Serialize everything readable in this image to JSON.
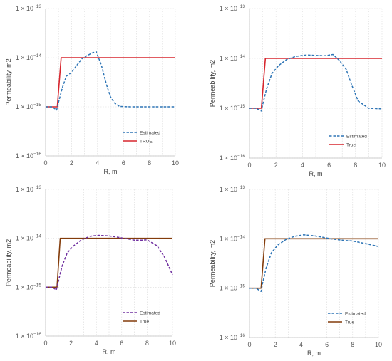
{
  "chart_data": [
    {
      "type": "line",
      "xlabel": "R, m",
      "ylabel": "Permeability, m2",
      "xlim": [
        0,
        10
      ],
      "ylim": [
        1e-16,
        1e-13
      ],
      "yscale": "log",
      "x_ticks": [
        "0",
        "2",
        "4",
        "6",
        "8",
        "10"
      ],
      "y_ticks": [
        {
          "base": "1 × 10",
          "exp": "−16"
        },
        {
          "base": "1 × 10",
          "exp": "−15"
        },
        {
          "base": "1 × 10",
          "exp": "−14"
        },
        {
          "base": "1 × 10",
          "exp": "−13"
        }
      ],
      "grid": true,
      "legend_position": "bottom-right",
      "series": [
        {
          "name": "Estimated",
          "color": "#2e75b6",
          "style": "dashed",
          "x": [
            0,
            0.5,
            0.85,
            1.0,
            1.3,
            1.6,
            2.0,
            2.4,
            2.8,
            3.2,
            3.6,
            3.9,
            4.3,
            4.7,
            5.0,
            5.3,
            5.7,
            6.5,
            7.5,
            8.5,
            9.5,
            10
          ],
          "y": [
            1e-15,
            1e-15,
            8.6e-16,
            1.25e-15,
            2.5e-15,
            4.2e-15,
            5e-15,
            7e-15,
            9.5e-15,
            1.1e-14,
            1.25e-14,
            1.33e-14,
            7e-15,
            2.8e-15,
            1.6e-15,
            1.2e-15,
            1.02e-15,
            1e-15,
            1e-15,
            1e-15,
            1e-15,
            1e-15
          ]
        },
        {
          "name": "TRUE",
          "color": "#d7262e",
          "style": "solid",
          "x": [
            0,
            0.9,
            1.2,
            10
          ],
          "y": [
            1e-15,
            1e-15,
            1e-14,
            1e-14
          ]
        }
      ]
    },
    {
      "type": "line",
      "xlabel": "R, m",
      "ylabel": "Permeability, m2",
      "xlim": [
        0,
        10
      ],
      "ylim": [
        1e-16,
        1e-13
      ],
      "yscale": "log",
      "x_ticks": [
        "0",
        "2",
        "4",
        "6",
        "8",
        "10"
      ],
      "y_ticks": [
        {
          "base": "1 × 10",
          "exp": "−16"
        },
        {
          "base": "1 × 10",
          "exp": "−15"
        },
        {
          "base": "1 × 10",
          "exp": "−14"
        },
        {
          "base": "1 × 10",
          "exp": "−13"
        }
      ],
      "grid": true,
      "legend_position": "bottom-right",
      "series": [
        {
          "name": "Estimated",
          "color": "#2e75b6",
          "style": "dashed",
          "x": [
            0,
            0.5,
            0.9,
            1.0,
            1.3,
            1.7,
            2.2,
            2.8,
            3.5,
            4.3,
            5.0,
            5.7,
            6.3,
            6.8,
            7.3,
            7.7,
            8.2,
            9.0,
            10
          ],
          "y": [
            1e-15,
            1e-15,
            8.8e-16,
            1.2e-15,
            2.5e-15,
            5e-15,
            7.2e-15,
            9.5e-15,
            1.1e-14,
            1.17e-14,
            1.15e-14,
            1.13e-14,
            1.2e-14,
            9e-15,
            6e-15,
            3e-15,
            1.4e-15,
            1e-15,
            9.7e-16
          ]
        },
        {
          "name": "True",
          "color": "#d7262e",
          "style": "solid",
          "x": [
            0,
            0.9,
            1.2,
            10
          ],
          "y": [
            1e-15,
            1e-15,
            1e-14,
            1e-14
          ]
        }
      ]
    },
    {
      "type": "line",
      "xlabel": "R, m",
      "ylabel": "Permeability, m2",
      "xlim": [
        0,
        10
      ],
      "ylim": [
        1e-16,
        1e-13
      ],
      "yscale": "log",
      "x_ticks": [
        "0",
        "2",
        "4",
        "6",
        "8",
        "10"
      ],
      "y_ticks": [
        {
          "base": "1 × 10",
          "exp": "−16"
        },
        {
          "base": "1 × 10",
          "exp": "−15"
        },
        {
          "base": "1 × 10",
          "exp": "−14"
        },
        {
          "base": "1 × 10",
          "exp": "−13"
        }
      ],
      "grid": true,
      "legend_position": "bottom-right",
      "series": [
        {
          "name": "Estimated",
          "color": "#7030a0",
          "style": "dashed",
          "x": [
            0,
            0.5,
            0.85,
            1.0,
            1.3,
            1.7,
            2.2,
            2.8,
            3.5,
            4.2,
            5.0,
            5.7,
            6.4,
            7.0,
            7.6,
            8.0,
            8.8,
            9.4,
            10
          ],
          "y": [
            1e-15,
            1e-15,
            8.8e-16,
            1.3e-15,
            2.7e-15,
            5e-15,
            7e-15,
            9.2e-15,
            1.1e-14,
            1.15e-14,
            1.12e-14,
            1.05e-14,
            9.8e-15,
            9.2e-15,
            9.2e-15,
            9.3e-15,
            7e-15,
            4e-15,
            1.8e-15
          ]
        },
        {
          "name": "True",
          "color": "#833c0b",
          "style": "solid",
          "x": [
            0,
            0.9,
            1.15,
            10
          ],
          "y": [
            1e-15,
            1e-15,
            1e-14,
            1e-14
          ]
        }
      ]
    },
    {
      "type": "line",
      "xlabel": "R, m",
      "ylabel": "Permeability, m2",
      "xlim": [
        0,
        10
      ],
      "ylim": [
        1e-16,
        1e-13
      ],
      "yscale": "log",
      "x_ticks": [
        "0",
        "2",
        "4",
        "6",
        "8",
        "10"
      ],
      "y_ticks": [
        {
          "base": "1 × 10",
          "exp": "−16"
        },
        {
          "base": "1 × 10",
          "exp": "−15"
        },
        {
          "base": "1 × 10",
          "exp": "−14"
        },
        {
          "base": "1 × 10",
          "exp": "−13"
        }
      ],
      "grid": true,
      "legend_position": "bottom-right",
      "series": [
        {
          "name": "Estimated",
          "color": "#2e75b6",
          "style": "dashed",
          "x": [
            0,
            0.5,
            0.9,
            1.0,
            1.3,
            1.7,
            2.2,
            2.8,
            3.5,
            4.2,
            5.0,
            5.8,
            6.5,
            7.3,
            8.0,
            9.0,
            10
          ],
          "y": [
            1e-15,
            1e-15,
            8.6e-16,
            1.2e-15,
            2.6e-15,
            5.2e-15,
            7.5e-15,
            9.6e-15,
            1.12e-14,
            1.2e-14,
            1.15e-14,
            1.06e-14,
            9.8e-15,
            9.3e-15,
            9e-15,
            8e-15,
            7e-15
          ]
        },
        {
          "name": "True",
          "color": "#833c0b",
          "style": "solid",
          "x": [
            0,
            0.9,
            1.2,
            10
          ],
          "y": [
            1e-15,
            1e-15,
            1e-14,
            1e-14
          ]
        }
      ]
    }
  ]
}
